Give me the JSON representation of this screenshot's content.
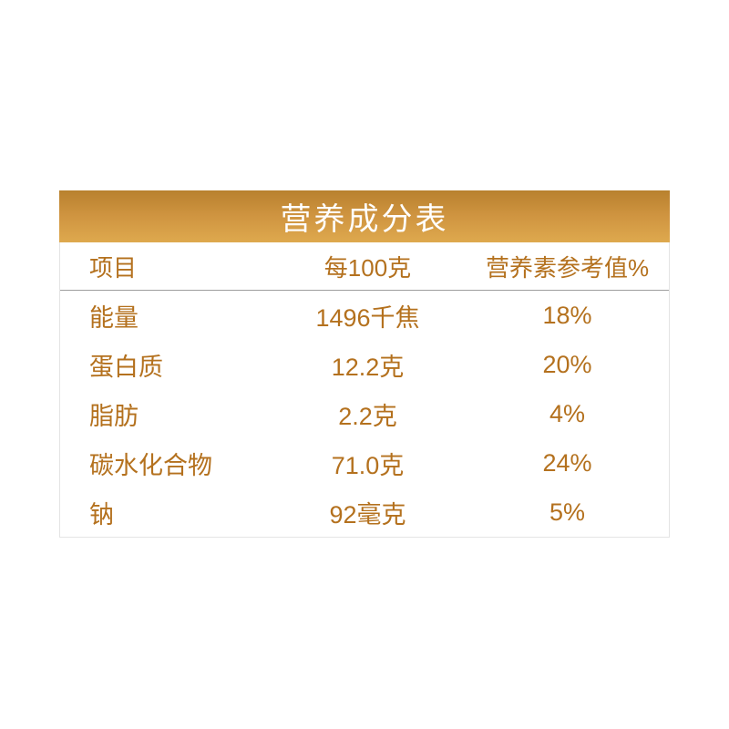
{
  "panel": {
    "title": "营养成分表",
    "colors": {
      "banner_gradient_top": "#b8812e",
      "banner_gradient_bottom": "#dea94e",
      "title_text": "#ffffff",
      "table_text": "#b4711e",
      "header_divider": "#9e9e9e",
      "table_border": "#e4e4e4",
      "page_background": "#ffffff"
    },
    "columns": {
      "item": "项目",
      "per_100g": "每100克",
      "nrv": "营养素参考值%"
    },
    "rows": [
      {
        "item": "能量",
        "per_100g": "1496千焦",
        "nrv": "18%"
      },
      {
        "item": "蛋白质",
        "per_100g": "12.2克",
        "nrv": "20%"
      },
      {
        "item": "脂肪",
        "per_100g": "2.2克",
        "nrv": "4%"
      },
      {
        "item": "碳水化合物",
        "per_100g": "71.0克",
        "nrv": "24%"
      },
      {
        "item": "钠",
        "per_100g": "92毫克",
        "nrv": "5%"
      }
    ]
  }
}
